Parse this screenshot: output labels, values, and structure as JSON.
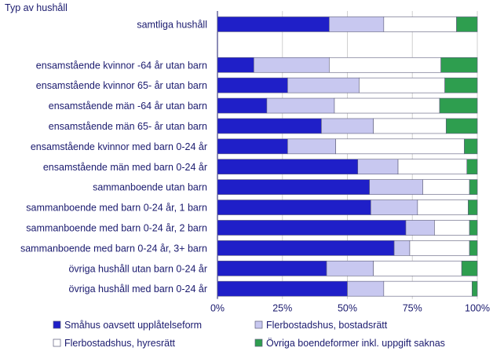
{
  "chart_data": {
    "type": "bar",
    "orientation": "horizontal",
    "stacked": true,
    "title": "Typ av hushåll",
    "xlabel": "",
    "ylabel": "",
    "xlim": [
      0,
      100
    ],
    "x_ticks": [
      "0%",
      "25%",
      "50%",
      "75%",
      "100%"
    ],
    "grid": true,
    "legend_position": "bottom",
    "categories": [
      "samtliga hushåll",
      "",
      "ensamstående kvinnor -64 år utan barn",
      "ensamstående kvinnor 65- år utan barn",
      "ensamstående män -64 år utan barn",
      "ensamstående män 65- år utan barn",
      "ensamstående kvinnor med barn 0-24 år",
      "ensamstående män med barn 0-24 år",
      "sammanboende utan barn",
      "sammanboende med barn 0-24 år, 1 barn",
      "sammanboende med barn 0-24 år, 2 barn",
      "sammanboende med barn 0-24 år, 3+  barn",
      "övriga hushåll utan barn 0-24 år",
      "övriga hushåll med barn 0-24 år"
    ],
    "series": [
      {
        "name": "Småhus oavsett upplåtelseform",
        "color": "#1f1fc8",
        "values": [
          43,
          null,
          14,
          27,
          19,
          40,
          27,
          54,
          58.5,
          59,
          72.5,
          68,
          42,
          50
        ]
      },
      {
        "name": "Flerbostadshus, bostadsrätt",
        "color": "#c8c8f0",
        "values": [
          21,
          null,
          29,
          27.5,
          26,
          20,
          18.5,
          15.5,
          20.5,
          18,
          11,
          6,
          18,
          14
        ]
      },
      {
        "name": "Flerbostadshus, hyresrätt",
        "color": "#ffffff",
        "values": [
          28,
          null,
          43,
          33,
          40.5,
          28,
          49.5,
          26.5,
          18,
          19.5,
          13.5,
          23,
          34,
          34
        ]
      },
      {
        "name": "Övriga boendeformer inkl. uppgift saknas",
        "color": "#2e9e4f",
        "values": [
          8,
          null,
          14,
          12.5,
          14.5,
          12,
          5,
          4,
          3,
          3.5,
          3,
          3,
          6,
          2
        ]
      }
    ]
  }
}
